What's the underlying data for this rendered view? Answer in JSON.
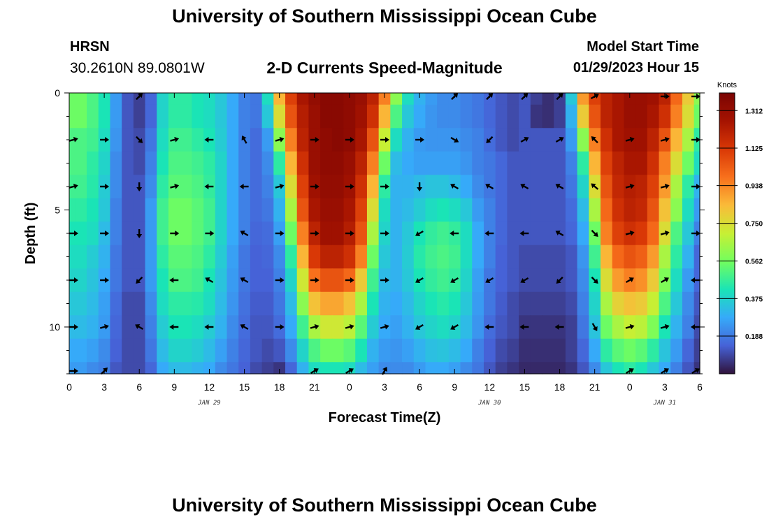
{
  "page": {
    "title_top": "University of Southern Mississippi Ocean Cube",
    "title_bottom": "University of Southern Mississippi Ocean Cube",
    "station": "HRSN",
    "coordinates": "30.2610N  89.0801W",
    "subtitle": "2-D Currents Speed-Magnitude",
    "model_start_label": "Model Start Time",
    "model_start_value": "01/29/2023 Hour 15"
  },
  "chart_data": {
    "type": "heatmap",
    "title": "2-D Currents Speed-Magnitude",
    "xlabel": "Forecast Time(Z)",
    "ylabel": "Depth (ft)",
    "x_hours_from_jan29_00z": [
      0,
      54
    ],
    "xlim_hours": [
      0,
      54
    ],
    "ylim_depth_ft": [
      0,
      12
    ],
    "x_tick_hours": [
      0,
      3,
      6,
      9,
      12,
      15,
      18,
      21,
      24,
      27,
      30,
      33,
      36,
      39,
      42,
      45,
      48,
      51,
      54
    ],
    "x_tick_labels": [
      "0",
      "3",
      "6",
      "9",
      "12",
      "15",
      "18",
      "21",
      "0",
      "3",
      "6",
      "9",
      "12",
      "15",
      "18",
      "21",
      "0",
      "3",
      "6"
    ],
    "y_ticks": [
      0,
      5,
      10
    ],
    "y_tick_labels": [
      "0",
      "5",
      "10"
    ],
    "date_labels": [
      {
        "hour": 12,
        "text": "JAN 29"
      },
      {
        "hour": 36,
        "text": "JAN 30"
      },
      {
        "hour": 51,
        "text": "JAN 31"
      }
    ],
    "colorbar": {
      "title": "Knots",
      "min": 0.0,
      "max": 1.4,
      "tick_values": [
        1.312,
        1.125,
        0.938,
        0.75,
        0.562,
        0.375,
        0.188
      ],
      "tick_labels": [
        "1.312",
        "1.125",
        "0.938",
        "0.750",
        "0.562",
        "0.375",
        "0.188"
      ]
    },
    "depth_levels_ft": [
      0,
      2,
      4,
      6,
      8,
      10,
      12
    ],
    "arrow_hours": [
      0,
      3,
      6,
      9,
      12,
      15,
      18,
      21,
      24,
      27,
      30,
      33,
      36,
      39,
      42,
      45,
      48,
      51,
      54
    ],
    "arrow_directions_deg": [
      [
        null,
        null,
        45,
        null,
        null,
        null,
        null,
        null,
        null,
        null,
        null,
        45,
        45,
        45,
        45,
        30,
        null,
        0,
        0
      ],
      [
        15,
        0,
        -45,
        15,
        180,
        120,
        15,
        0,
        0,
        0,
        0,
        -30,
        -135,
        30,
        30,
        135,
        15,
        15,
        0
      ],
      [
        15,
        0,
        -90,
        15,
        180,
        180,
        15,
        0,
        0,
        0,
        -90,
        150,
        150,
        150,
        150,
        140,
        15,
        15,
        0
      ],
      [
        0,
        0,
        -90,
        0,
        0,
        150,
        0,
        0,
        0,
        0,
        210,
        180,
        180,
        180,
        150,
        -45,
        15,
        15,
        0
      ],
      [
        0,
        0,
        -135,
        180,
        150,
        150,
        0,
        0,
        0,
        0,
        210,
        210,
        210,
        210,
        225,
        -45,
        30,
        30,
        180
      ],
      [
        0,
        15,
        150,
        180,
        180,
        150,
        0,
        15,
        15,
        15,
        210,
        210,
        180,
        180,
        180,
        -60,
        15,
        15,
        180
      ],
      [
        0,
        45,
        null,
        null,
        null,
        null,
        null,
        30,
        30,
        60,
        null,
        null,
        null,
        null,
        null,
        null,
        30,
        30,
        30
      ]
    ],
    "speed_columns_hours": [
      0,
      1,
      2,
      3,
      4,
      5,
      6,
      7,
      8,
      9,
      10,
      11,
      12,
      13,
      14,
      15,
      16,
      17,
      18,
      19,
      20,
      21,
      22,
      23,
      24,
      25,
      26,
      27,
      28,
      29,
      30,
      31,
      32,
      33,
      34,
      35,
      36,
      37,
      38,
      39,
      40,
      41,
      42,
      43,
      44,
      45,
      46,
      47,
      48,
      49,
      50,
      51,
      52,
      53,
      54
    ],
    "speed_knots_by_depth_rows": [
      {
        "depth_ft": 0,
        "values": [
          0.55,
          0.55,
          0.5,
          0.42,
          0.25,
          0.12,
          0.08,
          0.15,
          0.38,
          0.45,
          0.45,
          0.42,
          0.4,
          0.35,
          0.28,
          0.2,
          0.18,
          0.4,
          0.85,
          1.1,
          1.25,
          1.32,
          1.35,
          1.35,
          1.33,
          1.3,
          1.2,
          0.95,
          0.6,
          0.4,
          0.3,
          0.25,
          0.22,
          0.22,
          0.2,
          0.18,
          0.15,
          0.12,
          0.1,
          0.12,
          0.08,
          0.05,
          0.08,
          0.35,
          0.9,
          1.1,
          1.2,
          1.25,
          1.3,
          1.3,
          1.28,
          1.2,
          1.0,
          0.8,
          0.6
        ]
      },
      {
        "depth_ft": 1,
        "values": [
          0.55,
          0.55,
          0.5,
          0.42,
          0.25,
          0.12,
          0.08,
          0.15,
          0.38,
          0.45,
          0.45,
          0.42,
          0.4,
          0.35,
          0.28,
          0.2,
          0.18,
          0.35,
          0.75,
          1.05,
          1.22,
          1.3,
          1.35,
          1.35,
          1.33,
          1.28,
          1.15,
          0.85,
          0.5,
          0.35,
          0.28,
          0.24,
          0.22,
          0.22,
          0.2,
          0.18,
          0.15,
          0.12,
          0.1,
          0.12,
          0.06,
          0.05,
          0.08,
          0.3,
          0.8,
          1.05,
          1.2,
          1.25,
          1.3,
          1.3,
          1.25,
          1.15,
          0.95,
          0.75,
          0.55
        ]
      },
      {
        "depth_ft": 2,
        "values": [
          0.5,
          0.5,
          0.48,
          0.4,
          0.24,
          0.12,
          0.1,
          0.18,
          0.4,
          0.48,
          0.48,
          0.45,
          0.42,
          0.36,
          0.28,
          0.2,
          0.16,
          0.25,
          0.6,
          0.95,
          1.2,
          1.3,
          1.33,
          1.35,
          1.33,
          1.25,
          1.05,
          0.7,
          0.4,
          0.3,
          0.25,
          0.24,
          0.24,
          0.24,
          0.22,
          0.2,
          0.16,
          0.12,
          0.1,
          0.12,
          0.12,
          0.12,
          0.12,
          0.25,
          0.6,
          0.95,
          1.15,
          1.25,
          1.28,
          1.28,
          1.2,
          1.05,
          0.85,
          0.65,
          0.45
        ]
      },
      {
        "depth_ft": 3,
        "values": [
          0.5,
          0.5,
          0.45,
          0.38,
          0.22,
          0.12,
          0.1,
          0.2,
          0.42,
          0.5,
          0.5,
          0.48,
          0.45,
          0.38,
          0.28,
          0.2,
          0.16,
          0.22,
          0.45,
          0.85,
          1.15,
          1.3,
          1.33,
          1.33,
          1.3,
          1.2,
          0.95,
          0.55,
          0.32,
          0.28,
          0.26,
          0.26,
          0.26,
          0.26,
          0.24,
          0.2,
          0.18,
          0.15,
          0.12,
          0.12,
          0.12,
          0.12,
          0.12,
          0.2,
          0.45,
          0.85,
          1.1,
          1.2,
          1.25,
          1.25,
          1.15,
          0.95,
          0.75,
          0.55,
          0.4
        ]
      },
      {
        "depth_ft": 4,
        "values": [
          0.48,
          0.48,
          0.44,
          0.36,
          0.22,
          0.12,
          0.12,
          0.22,
          0.45,
          0.52,
          0.52,
          0.5,
          0.46,
          0.38,
          0.28,
          0.2,
          0.16,
          0.2,
          0.35,
          0.75,
          1.1,
          1.28,
          1.32,
          1.32,
          1.28,
          1.15,
          0.85,
          0.45,
          0.3,
          0.3,
          0.32,
          0.34,
          0.34,
          0.32,
          0.28,
          0.22,
          0.18,
          0.15,
          0.12,
          0.12,
          0.12,
          0.12,
          0.12,
          0.18,
          0.38,
          0.75,
          1.05,
          1.18,
          1.22,
          1.2,
          1.1,
          0.9,
          0.65,
          0.45,
          0.3
        ]
      },
      {
        "depth_ft": 5,
        "values": [
          0.45,
          0.45,
          0.42,
          0.35,
          0.2,
          0.12,
          0.12,
          0.25,
          0.48,
          0.55,
          0.55,
          0.52,
          0.48,
          0.38,
          0.28,
          0.2,
          0.16,
          0.18,
          0.3,
          0.65,
          1.05,
          1.25,
          1.3,
          1.3,
          1.25,
          1.1,
          0.75,
          0.4,
          0.3,
          0.32,
          0.36,
          0.4,
          0.42,
          0.4,
          0.35,
          0.25,
          0.2,
          0.15,
          0.12,
          0.12,
          0.12,
          0.12,
          0.12,
          0.16,
          0.32,
          0.65,
          1.0,
          1.15,
          1.2,
          1.18,
          1.05,
          0.82,
          0.6,
          0.4,
          0.25
        ]
      },
      {
        "depth_ft": 6,
        "values": [
          0.42,
          0.42,
          0.4,
          0.32,
          0.2,
          0.12,
          0.12,
          0.25,
          0.48,
          0.55,
          0.55,
          0.52,
          0.48,
          0.38,
          0.28,
          0.2,
          0.15,
          0.16,
          0.26,
          0.55,
          0.95,
          1.2,
          1.28,
          1.28,
          1.22,
          1.05,
          0.65,
          0.38,
          0.3,
          0.35,
          0.42,
          0.46,
          0.48,
          0.46,
          0.4,
          0.28,
          0.2,
          0.15,
          0.12,
          0.12,
          0.12,
          0.12,
          0.12,
          0.15,
          0.28,
          0.55,
          0.95,
          1.1,
          1.15,
          1.12,
          1.0,
          0.75,
          0.5,
          0.35,
          0.2
        ]
      },
      {
        "depth_ft": 7,
        "values": [
          0.4,
          0.4,
          0.36,
          0.3,
          0.18,
          0.12,
          0.12,
          0.25,
          0.45,
          0.52,
          0.52,
          0.5,
          0.45,
          0.36,
          0.26,
          0.18,
          0.14,
          0.15,
          0.22,
          0.45,
          0.85,
          1.12,
          1.2,
          1.2,
          1.15,
          0.95,
          0.55,
          0.35,
          0.3,
          0.36,
          0.44,
          0.48,
          0.5,
          0.48,
          0.4,
          0.28,
          0.2,
          0.14,
          0.12,
          0.1,
          0.1,
          0.1,
          0.1,
          0.12,
          0.24,
          0.48,
          0.85,
          1.0,
          1.05,
          1.02,
          0.9,
          0.65,
          0.45,
          0.3,
          0.15
        ]
      },
      {
        "depth_ft": 8,
        "values": [
          0.38,
          0.38,
          0.34,
          0.28,
          0.18,
          0.12,
          0.12,
          0.25,
          0.42,
          0.5,
          0.5,
          0.48,
          0.42,
          0.34,
          0.25,
          0.18,
          0.14,
          0.14,
          0.2,
          0.38,
          0.72,
          0.98,
          1.05,
          1.05,
          1.0,
          0.8,
          0.48,
          0.32,
          0.3,
          0.35,
          0.42,
          0.46,
          0.48,
          0.46,
          0.38,
          0.26,
          0.18,
          0.14,
          0.12,
          0.1,
          0.1,
          0.1,
          0.1,
          0.12,
          0.22,
          0.42,
          0.75,
          0.9,
          0.95,
          0.92,
          0.8,
          0.58,
          0.4,
          0.25,
          0.15
        ]
      },
      {
        "depth_ft": 9,
        "values": [
          0.35,
          0.35,
          0.32,
          0.26,
          0.16,
          0.1,
          0.1,
          0.22,
          0.4,
          0.45,
          0.45,
          0.44,
          0.4,
          0.32,
          0.24,
          0.17,
          0.13,
          0.13,
          0.18,
          0.32,
          0.6,
          0.82,
          0.88,
          0.88,
          0.82,
          0.65,
          0.42,
          0.3,
          0.28,
          0.32,
          0.38,
          0.42,
          0.44,
          0.42,
          0.35,
          0.25,
          0.18,
          0.13,
          0.1,
          0.08,
          0.08,
          0.08,
          0.08,
          0.1,
          0.2,
          0.38,
          0.65,
          0.78,
          0.82,
          0.8,
          0.7,
          0.5,
          0.35,
          0.22,
          0.12
        ]
      },
      {
        "depth_ft": 10,
        "values": [
          0.32,
          0.32,
          0.3,
          0.25,
          0.15,
          0.1,
          0.1,
          0.2,
          0.36,
          0.42,
          0.42,
          0.4,
          0.36,
          0.3,
          0.22,
          0.16,
          0.12,
          0.12,
          0.16,
          0.28,
          0.48,
          0.65,
          0.72,
          0.72,
          0.68,
          0.52,
          0.36,
          0.28,
          0.26,
          0.3,
          0.35,
          0.38,
          0.4,
          0.38,
          0.32,
          0.24,
          0.16,
          0.12,
          0.1,
          0.06,
          0.06,
          0.06,
          0.06,
          0.08,
          0.18,
          0.34,
          0.55,
          0.65,
          0.7,
          0.68,
          0.58,
          0.42,
          0.3,
          0.2,
          0.1
        ]
      },
      {
        "depth_ft": 11,
        "values": [
          0.28,
          0.28,
          0.26,
          0.22,
          0.14,
          0.1,
          0.1,
          0.18,
          0.32,
          0.38,
          0.38,
          0.36,
          0.32,
          0.26,
          0.2,
          0.15,
          0.12,
          0.1,
          0.12,
          0.22,
          0.38,
          0.5,
          0.55,
          0.55,
          0.52,
          0.42,
          0.3,
          0.25,
          0.24,
          0.26,
          0.3,
          0.33,
          0.34,
          0.32,
          0.28,
          0.2,
          0.14,
          0.1,
          0.08,
          0.05,
          0.05,
          0.05,
          0.05,
          0.08,
          0.15,
          0.28,
          0.45,
          0.52,
          0.55,
          0.52,
          0.45,
          0.34,
          0.25,
          0.15,
          0.08
        ]
      },
      {
        "depth_ft": 12,
        "values": [
          0.25,
          0.25,
          0.22,
          0.2,
          0.12,
          0.1,
          0.1,
          0.15,
          0.28,
          0.32,
          0.32,
          0.3,
          0.28,
          0.22,
          0.18,
          0.14,
          0.1,
          0.08,
          0.06,
          0.15,
          0.3,
          0.4,
          0.42,
          0.42,
          0.4,
          0.32,
          0.26,
          0.22,
          0.22,
          0.22,
          0.25,
          0.28,
          0.28,
          0.26,
          0.22,
          0.18,
          0.12,
          0.08,
          0.06,
          0.04,
          0.04,
          0.04,
          0.04,
          0.06,
          0.12,
          0.22,
          0.35,
          0.42,
          0.45,
          0.42,
          0.35,
          0.28,
          0.2,
          0.12,
          0.06
        ]
      }
    ]
  }
}
